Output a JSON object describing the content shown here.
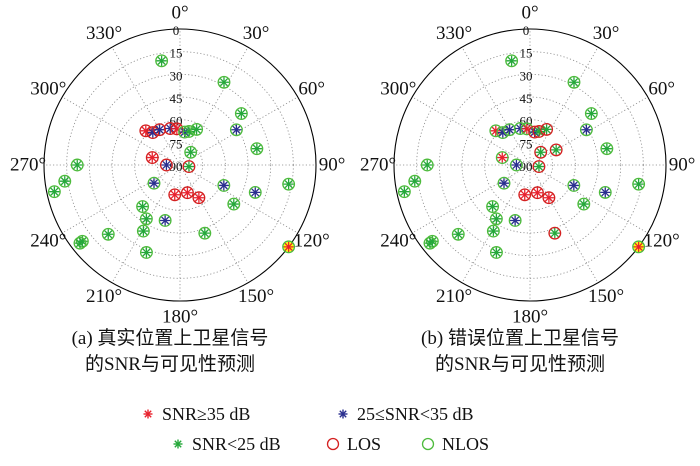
{
  "charts": [
    {
      "panel": "a",
      "caption_line1": "(a) 真实位置上卫星信号",
      "caption_line2": "的SNR与可见性预测",
      "satellites": [
        {
          "az": 350,
          "el": 20,
          "snr": "low",
          "vis": "nlos"
        },
        {
          "az": 28,
          "el": 28,
          "snr": "low",
          "vis": "nlos"
        },
        {
          "az": 50,
          "el": 37,
          "snr": "low",
          "vis": "nlos"
        },
        {
          "az": 58,
          "el": 46,
          "snr": "mid",
          "vis": "nlos"
        },
        {
          "az": 78,
          "el": 38,
          "snr": "low",
          "vis": "nlos"
        },
        {
          "az": 315,
          "el": 58,
          "snr": "high",
          "vis": "los"
        },
        {
          "az": 320,
          "el": 62,
          "snr": "mid",
          "vis": "los"
        },
        {
          "az": 330,
          "el": 63,
          "snr": "mid",
          "vis": "los"
        },
        {
          "az": 345,
          "el": 65,
          "snr": "mid",
          "vis": "los"
        },
        {
          "az": 355,
          "el": 66,
          "snr": "high",
          "vis": "los"
        },
        {
          "az": 8,
          "el": 68,
          "snr": "mid",
          "vis": "nlos"
        },
        {
          "az": 15,
          "el": 67,
          "snr": "low",
          "vis": "nlos"
        },
        {
          "az": 25,
          "el": 64,
          "snr": "low",
          "vis": "nlos"
        },
        {
          "az": 285,
          "el": 71,
          "snr": "high",
          "vis": "los"
        },
        {
          "az": 270,
          "el": 81,
          "snr": "mid",
          "vis": "los"
        },
        {
          "az": 40,
          "el": 79,
          "snr": "low",
          "vis": "nlos"
        },
        {
          "az": 100,
          "el": 84,
          "snr": "low",
          "vis": "los"
        },
        {
          "az": 270,
          "el": 22,
          "snr": "low",
          "vis": "nlos"
        },
        {
          "az": 262,
          "el": 13,
          "snr": "low",
          "vis": "nlos"
        },
        {
          "az": 258,
          "el": 5,
          "snr": "low",
          "vis": "nlos"
        },
        {
          "az": 235,
          "el": 69,
          "snr": "mid",
          "vis": "nlos"
        },
        {
          "az": 165,
          "el": 71,
          "snr": "high",
          "vis": "los"
        },
        {
          "az": 190,
          "el": 70,
          "snr": "high",
          "vis": "los"
        },
        {
          "az": 150,
          "el": 65,
          "snr": "high",
          "vis": "los"
        },
        {
          "az": 115,
          "el": 58,
          "snr": "mid",
          "vis": "nlos"
        },
        {
          "az": 110,
          "el": 37,
          "snr": "mid",
          "vis": "nlos"
        },
        {
          "az": 100,
          "el": 17,
          "snr": "low",
          "vis": "nlos"
        },
        {
          "az": 126,
          "el": 46,
          "snr": "low",
          "vis": "nlos"
        },
        {
          "az": 127,
          "el": 0,
          "snr": "high",
          "vis": "nlos"
        },
        {
          "az": 160,
          "el": 42,
          "snr": "low",
          "vis": "nlos"
        },
        {
          "az": 195,
          "el": 52,
          "snr": "mid",
          "vis": "nlos"
        },
        {
          "az": 212,
          "el": 48,
          "snr": "low",
          "vis": "nlos"
        },
        {
          "az": 222,
          "el": 53,
          "snr": "low",
          "vis": "nlos"
        },
        {
          "az": 209,
          "el": 40,
          "snr": "low",
          "vis": "nlos"
        },
        {
          "az": 201,
          "el": 28,
          "snr": "low",
          "vis": "nlos"
        },
        {
          "az": 226,
          "el": 24,
          "snr": "low",
          "vis": "nlos"
        },
        {
          "az": 232,
          "el": 8,
          "snr": "low",
          "vis": "nlos"
        },
        {
          "az": 232,
          "el": 6,
          "snr": "low",
          "vis": "nlos"
        }
      ]
    },
    {
      "panel": "b",
      "caption_line1": "(b) 错误位置上卫星信号",
      "caption_line2": "的SNR与可见性预测",
      "satellites": [
        {
          "az": 350,
          "el": 20,
          "snr": "low",
          "vis": "nlos"
        },
        {
          "az": 28,
          "el": 28,
          "snr": "low",
          "vis": "nlos"
        },
        {
          "az": 50,
          "el": 37,
          "snr": "low",
          "vis": "nlos"
        },
        {
          "az": 58,
          "el": 46,
          "snr": "mid",
          "vis": "nlos"
        },
        {
          "az": 78,
          "el": 38,
          "snr": "low",
          "vis": "nlos"
        },
        {
          "az": 315,
          "el": 58,
          "snr": "high",
          "vis": "nlos"
        },
        {
          "az": 320,
          "el": 62,
          "snr": "mid",
          "vis": "nlos"
        },
        {
          "az": 330,
          "el": 63,
          "snr": "mid",
          "vis": "nlos"
        },
        {
          "az": 345,
          "el": 65,
          "snr": "mid",
          "vis": "nlos"
        },
        {
          "az": 355,
          "el": 66,
          "snr": "high",
          "vis": "nlos"
        },
        {
          "az": 8,
          "el": 68,
          "snr": "mid",
          "vis": "los"
        },
        {
          "az": 15,
          "el": 67,
          "snr": "low",
          "vis": "los"
        },
        {
          "az": 25,
          "el": 64,
          "snr": "low",
          "vis": "los"
        },
        {
          "az": 285,
          "el": 71,
          "snr": "high",
          "vis": "nlos"
        },
        {
          "az": 270,
          "el": 81,
          "snr": "mid",
          "vis": "nlos"
        },
        {
          "az": 40,
          "el": 79,
          "snr": "low",
          "vis": "los"
        },
        {
          "az": 100,
          "el": 84,
          "snr": "low",
          "vis": "los"
        },
        {
          "az": 60,
          "el": 70,
          "snr": "low",
          "vis": "los"
        },
        {
          "az": 270,
          "el": 22,
          "snr": "low",
          "vis": "nlos"
        },
        {
          "az": 262,
          "el": 13,
          "snr": "low",
          "vis": "nlos"
        },
        {
          "az": 258,
          "el": 5,
          "snr": "low",
          "vis": "nlos"
        },
        {
          "az": 235,
          "el": 69,
          "snr": "mid",
          "vis": "nlos"
        },
        {
          "az": 165,
          "el": 71,
          "snr": "high",
          "vis": "los"
        },
        {
          "az": 190,
          "el": 70,
          "snr": "high",
          "vis": "los"
        },
        {
          "az": 150,
          "el": 65,
          "snr": "high",
          "vis": "los"
        },
        {
          "az": 115,
          "el": 58,
          "snr": "mid",
          "vis": "nlos"
        },
        {
          "az": 110,
          "el": 37,
          "snr": "mid",
          "vis": "nlos"
        },
        {
          "az": 100,
          "el": 17,
          "snr": "low",
          "vis": "nlos"
        },
        {
          "az": 126,
          "el": 46,
          "snr": "low",
          "vis": "nlos"
        },
        {
          "az": 127,
          "el": 0,
          "snr": "high",
          "vis": "nlos"
        },
        {
          "az": 160,
          "el": 42,
          "snr": "low",
          "vis": "los"
        },
        {
          "az": 195,
          "el": 52,
          "snr": "mid",
          "vis": "nlos"
        },
        {
          "az": 212,
          "el": 48,
          "snr": "low",
          "vis": "nlos"
        },
        {
          "az": 222,
          "el": 53,
          "snr": "low",
          "vis": "nlos"
        },
        {
          "az": 209,
          "el": 40,
          "snr": "low",
          "vis": "nlos"
        },
        {
          "az": 201,
          "el": 28,
          "snr": "low",
          "vis": "nlos"
        },
        {
          "az": 226,
          "el": 24,
          "snr": "low",
          "vis": "nlos"
        },
        {
          "az": 232,
          "el": 8,
          "snr": "low",
          "vis": "nlos"
        },
        {
          "az": 232,
          "el": 6,
          "snr": "low",
          "vis": "nlos"
        }
      ]
    }
  ],
  "chart_data": [
    {
      "type": "scatter",
      "subtype": "polar-skyplot",
      "panel": "a",
      "azimuth_labels": [
        "0°",
        "30°",
        "60°",
        "90°",
        "120°",
        "150°",
        "180°",
        "210°",
        "240°",
        "270°",
        "300°",
        "330°"
      ],
      "elevation_labels": [
        "0",
        "15",
        "30",
        "45",
        "60",
        "75",
        "90"
      ],
      "elevation_range": [
        0,
        90
      ],
      "legend": [
        "SNR≥35 dB",
        "25≤SNR<35 dB",
        "SNR<25 dB",
        "LOS",
        "NLOS"
      ],
      "series_ref": "charts.0.satellites"
    },
    {
      "type": "scatter",
      "subtype": "polar-skyplot",
      "panel": "b",
      "azimuth_labels": [
        "0°",
        "30°",
        "60°",
        "90°",
        "120°",
        "150°",
        "180°",
        "210°",
        "240°",
        "270°",
        "300°",
        "330°"
      ],
      "elevation_labels": [
        "0",
        "15",
        "30",
        "45",
        "60",
        "75",
        "90"
      ],
      "elevation_range": [
        0,
        90
      ],
      "legend": [
        "SNR≥35 dB",
        "25≤SNR<35 dB",
        "SNR<25 dB",
        "LOS",
        "NLOS"
      ],
      "series_ref": "charts.1.satellites"
    }
  ],
  "axes": {
    "azimuth_labels": [
      "0°",
      "30°",
      "60°",
      "90°",
      "120°",
      "150°",
      "180°",
      "210°",
      "240°",
      "270°",
      "300°",
      "330°"
    ],
    "elevation_labels": [
      "0",
      "15",
      "30",
      "45",
      "60",
      "75",
      "90"
    ]
  },
  "legend": {
    "snr_high": "SNR≥35 dB",
    "snr_mid": "25≤SNR<35 dB",
    "snr_low": "SNR<25 dB",
    "los": "LOS",
    "nlos": "NLOS"
  },
  "colors": {
    "snr_high": "#e8222e",
    "snr_mid": "#2a2f8f",
    "snr_low": "#25a83a",
    "los": "#d42020",
    "nlos": "#4dbb3c",
    "grid": "#888888",
    "axis": "#000000",
    "highlight": "#ffff00"
  }
}
